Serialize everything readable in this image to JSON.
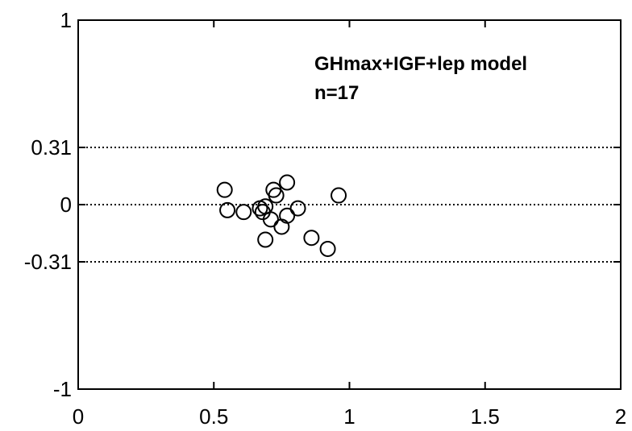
{
  "chart_data": {
    "type": "scatter",
    "title": "",
    "xlabel": "",
    "ylabel": "",
    "xlim": [
      0,
      2
    ],
    "ylim": [
      -1,
      1
    ],
    "x_ticks": [
      {
        "value": 0,
        "label": "0"
      },
      {
        "value": 0.5,
        "label": "0.5"
      },
      {
        "value": 1,
        "label": "1"
      },
      {
        "value": 1.5,
        "label": "1.5"
      },
      {
        "value": 2,
        "label": "2"
      }
    ],
    "y_ticks": [
      {
        "value": -1,
        "label": "-1"
      },
      {
        "value": -0.31,
        "label": "-0.31"
      },
      {
        "value": 0,
        "label": "0"
      },
      {
        "value": 0.31,
        "label": "0.31"
      },
      {
        "value": 1,
        "label": "1"
      }
    ],
    "reference_lines": [
      {
        "y": 0.31,
        "style": "dotted"
      },
      {
        "y": 0,
        "style": "dotted"
      },
      {
        "y": -0.31,
        "style": "dotted"
      }
    ],
    "annotations": [
      "GHmax+IGF+lep model",
      "n=17"
    ],
    "grid": false,
    "marker": "open-circle",
    "series": [
      {
        "points": [
          {
            "x": 0.54,
            "y": 0.08
          },
          {
            "x": 0.55,
            "y": -0.03
          },
          {
            "x": 0.61,
            "y": -0.04
          },
          {
            "x": 0.67,
            "y": -0.02
          },
          {
            "x": 0.68,
            "y": -0.04
          },
          {
            "x": 0.69,
            "y": -0.01
          },
          {
            "x": 0.69,
            "y": -0.19
          },
          {
            "x": 0.71,
            "y": -0.08
          },
          {
            "x": 0.72,
            "y": 0.08
          },
          {
            "x": 0.73,
            "y": 0.05
          },
          {
            "x": 0.75,
            "y": -0.12
          },
          {
            "x": 0.77,
            "y": -0.06
          },
          {
            "x": 0.77,
            "y": 0.12
          },
          {
            "x": 0.81,
            "y": -0.02
          },
          {
            "x": 0.86,
            "y": -0.18
          },
          {
            "x": 0.92,
            "y": -0.24
          },
          {
            "x": 0.96,
            "y": 0.05
          }
        ]
      }
    ]
  }
}
